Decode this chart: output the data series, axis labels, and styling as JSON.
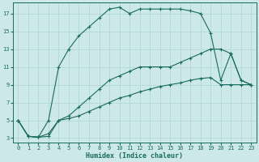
{
  "xlabel": "Humidex (Indice chaleur)",
  "bg_color": "#cce8e8",
  "line_color": "#1a6b60",
  "grid_color": "#b0d8d8",
  "xlim_min": -0.5,
  "xlim_max": 23.5,
  "ylim_min": 2.5,
  "ylim_max": 18.2,
  "yticks": [
    3,
    5,
    7,
    9,
    11,
    13,
    15,
    17
  ],
  "xticks": [
    0,
    1,
    2,
    3,
    4,
    5,
    6,
    7,
    8,
    9,
    10,
    11,
    12,
    13,
    14,
    15,
    16,
    17,
    18,
    19,
    20,
    21,
    22,
    23
  ],
  "curve_top_x": [
    0,
    1,
    2,
    3,
    4,
    5,
    6,
    7,
    8,
    9,
    10,
    11,
    12,
    13,
    14,
    15,
    16,
    17,
    18,
    19,
    20,
    21,
    22,
    23
  ],
  "curve_top_y": [
    5,
    3.2,
    3.1,
    5.0,
    11.0,
    13.0,
    14.5,
    15.5,
    16.5,
    17.5,
    17.7,
    17.0,
    17.5,
    17.5,
    17.5,
    17.5,
    17.5,
    17.3,
    17.0,
    14.8,
    9.5,
    12.5,
    9.5,
    9.0
  ],
  "curve_mid_x": [
    0,
    1,
    2,
    3,
    4,
    5,
    6,
    7,
    8,
    9,
    10,
    11,
    12,
    13,
    14,
    15,
    16,
    17,
    18,
    19,
    20,
    21,
    22,
    23
  ],
  "curve_mid_y": [
    5,
    3.2,
    3.1,
    3.5,
    5.0,
    5.5,
    6.5,
    7.5,
    8.5,
    9.5,
    10.0,
    10.5,
    11.0,
    11.0,
    11.0,
    11.0,
    11.5,
    12.0,
    12.5,
    13.0,
    13.0,
    12.5,
    9.5,
    9.0
  ],
  "curve_bot_x": [
    0,
    1,
    2,
    3,
    4,
    5,
    6,
    7,
    8,
    9,
    10,
    11,
    12,
    13,
    14,
    15,
    16,
    17,
    18,
    19,
    20,
    21,
    22,
    23
  ],
  "curve_bot_y": [
    5,
    3.2,
    3.1,
    3.2,
    5.0,
    5.2,
    5.5,
    6.0,
    6.5,
    7.0,
    7.5,
    7.8,
    8.2,
    8.5,
    8.8,
    9.0,
    9.2,
    9.5,
    9.7,
    9.8,
    9.0,
    9.0,
    9.0,
    9.0
  ]
}
